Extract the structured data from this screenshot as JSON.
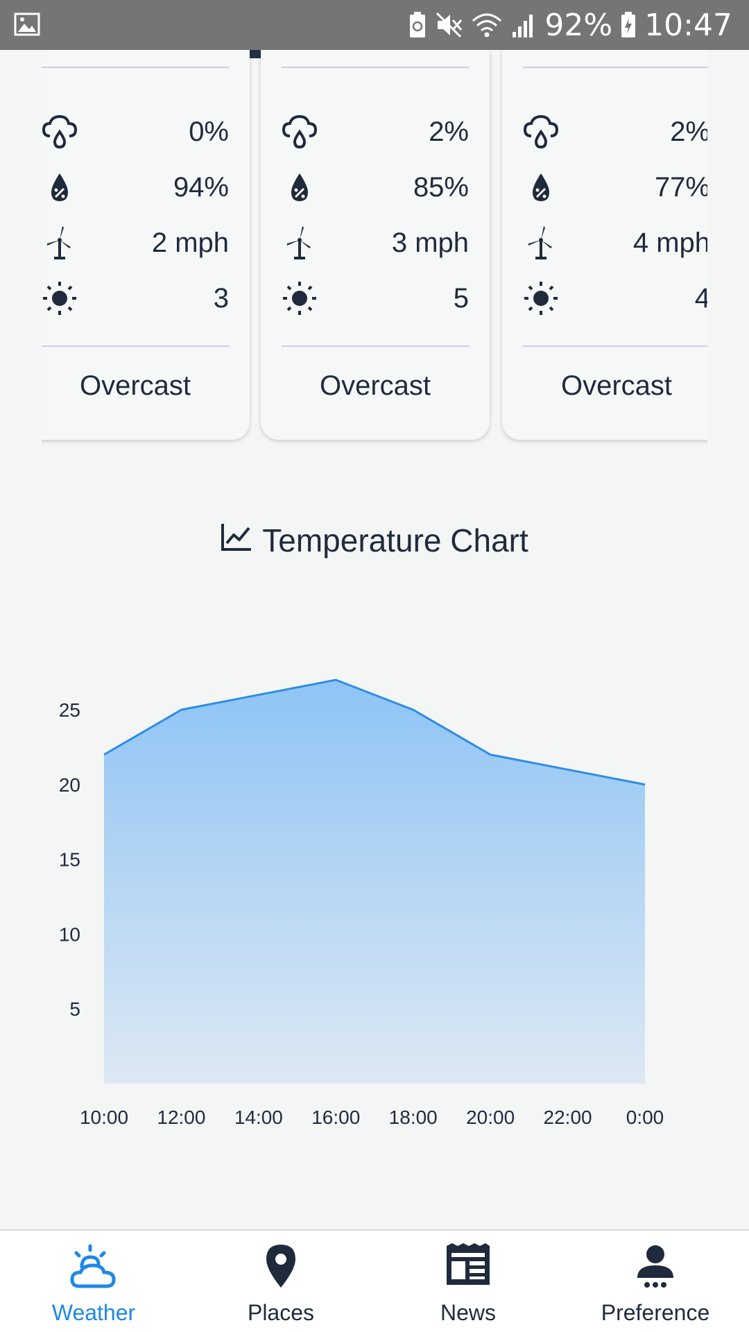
{
  "status_bar": {
    "battery_percent": "92%",
    "time": "10:47",
    "icons": [
      "image-icon",
      "battery-saver-icon",
      "mute-icon",
      "wifi-icon",
      "signal-icon",
      "battery-charging-icon"
    ]
  },
  "forecast_cards": [
    {
      "precipitation": "0%",
      "humidity": "94%",
      "wind": "2 mph",
      "uv": "3",
      "condition": "Overcast"
    },
    {
      "precipitation": "2%",
      "humidity": "85%",
      "wind": "3 mph",
      "uv": "5",
      "condition": "Overcast"
    },
    {
      "precipitation": "2%",
      "humidity": "77%",
      "wind": "4 mph",
      "uv": "4",
      "condition": "Overcast"
    }
  ],
  "chart_section": {
    "title": "Temperature Chart",
    "icon": "line-chart-icon"
  },
  "chart_data": {
    "type": "area",
    "title": "Temperature Chart",
    "x": [
      "10:00",
      "12:00",
      "14:00",
      "16:00",
      "18:00",
      "20:00",
      "22:00",
      "0:00"
    ],
    "series": [
      {
        "values": [
          22,
          25,
          26,
          27,
          25,
          22,
          21,
          20
        ]
      }
    ],
    "yticks": [
      5,
      10,
      15,
      20,
      25
    ],
    "ylim": [
      0,
      27
    ],
    "grid": false,
    "line_color": "#2d8de6",
    "fill_top_color": "#8ec4f5",
    "fill_bottom_color": "#dde8f3"
  },
  "bottom_nav": {
    "items": [
      {
        "label": "Weather",
        "icon": "weather-icon",
        "active": true
      },
      {
        "label": "Places",
        "icon": "map-pin-icon",
        "active": false
      },
      {
        "label": "News",
        "icon": "newspaper-icon",
        "active": false
      },
      {
        "label": "Preference",
        "icon": "user-icon",
        "active": false
      }
    ],
    "active_color": "#1e88e5",
    "inactive_color": "#1f2a3c"
  }
}
